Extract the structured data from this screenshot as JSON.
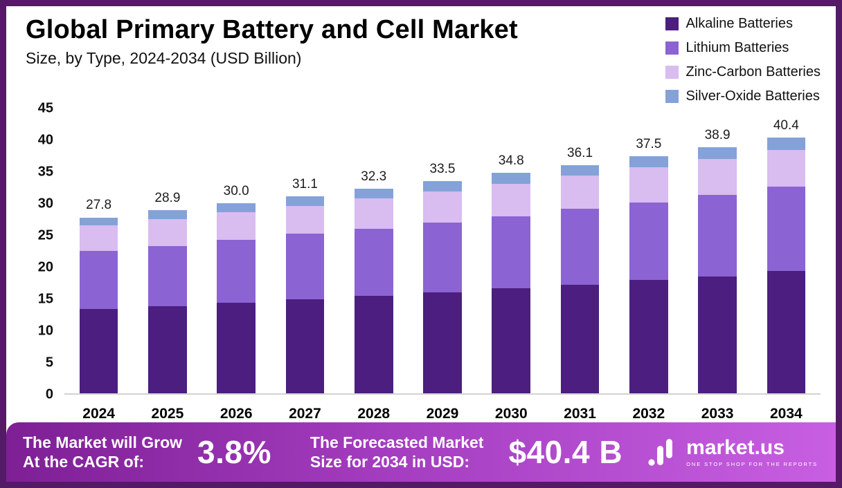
{
  "chart_data": {
    "type": "bar",
    "stacked": true,
    "title": "Global Primary Battery and Cell Market",
    "subtitle": "Size, by Type, 2024-2034 (USD Billion)",
    "xlabel": "",
    "ylabel": "",
    "ylim": [
      0,
      45
    ],
    "yticks": [
      45,
      40,
      35,
      30,
      25,
      20,
      15,
      10,
      5,
      0
    ],
    "grid": false,
    "legend_position": "top-right",
    "categories": [
      "2024",
      "2025",
      "2026",
      "2027",
      "2028",
      "2029",
      "2030",
      "2031",
      "2032",
      "2033",
      "2034"
    ],
    "series": [
      {
        "name": "Alkaline Batteries",
        "color": "#4b1e7f",
        "values": [
          13.3,
          13.8,
          14.3,
          14.9,
          15.4,
          15.9,
          16.6,
          17.2,
          17.9,
          18.5,
          19.3
        ]
      },
      {
        "name": "Lithium Batteries",
        "color": "#8c63d2",
        "values": [
          9.2,
          9.5,
          9.9,
          10.3,
          10.6,
          11.1,
          11.4,
          12.0,
          12.3,
          12.9,
          13.4
        ]
      },
      {
        "name": "Zinc-Carbon Batteries",
        "color": "#d9bcf0",
        "values": [
          4.0,
          4.2,
          4.4,
          4.4,
          4.8,
          4.9,
          5.1,
          5.2,
          5.5,
          5.6,
          5.8
        ]
      },
      {
        "name": "Silver-Oxide Batteries",
        "color": "#84a2d8",
        "values": [
          1.3,
          1.4,
          1.4,
          1.5,
          1.5,
          1.6,
          1.7,
          1.7,
          1.8,
          1.9,
          1.9
        ]
      }
    ],
    "totals": [
      "27.8",
      "28.9",
      "30.0",
      "31.1",
      "32.3",
      "33.5",
      "34.8",
      "36.1",
      "37.5",
      "38.9",
      "40.4"
    ]
  },
  "footer": {
    "cagr_label_line1": "The Market will Grow",
    "cagr_label_line2": "At the CAGR of:",
    "cagr_value": "3.8%",
    "forecast_label_line1": "The Forecasted Market",
    "forecast_label_line2": "Size for 2034 in USD:",
    "forecast_value": "$40.4 B",
    "brand": "market.us",
    "brand_tagline": "ONE STOP SHOP FOR THE REPORTS"
  },
  "colors": {
    "border": "#541a66",
    "footer_gradient_start": "#7e1f95",
    "footer_gradient_end": "#c85fe2",
    "baseline": "#d2d2d2"
  }
}
